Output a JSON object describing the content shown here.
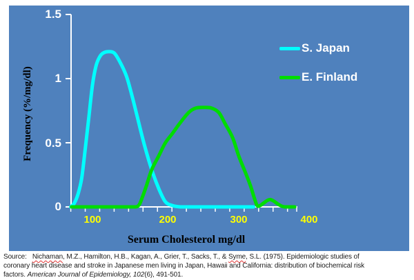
{
  "chart": {
    "background_color": "#4f81bd",
    "axis_color": "#ffffff",
    "y_axis": {
      "title": "Frequency  (%/mg/dl)",
      "tick_labels": [
        "1.5",
        "1",
        "0.5",
        "0"
      ],
      "label_color": "#ffffff"
    },
    "x_axis": {
      "title": "Serum Cholesterol mg/dl",
      "tick_labels": [
        "100",
        "200",
        "300",
        "400"
      ],
      "label_color": "#ffff00"
    },
    "legend": {
      "items": [
        {
          "label": "S. Japan",
          "color": "#00ffff"
        },
        {
          "label": "E. Finland",
          "color": "#00dd00"
        }
      ]
    }
  },
  "chart_data": {
    "type": "line",
    "title": "",
    "xlabel": "Serum Cholesterol mg/dl",
    "ylabel": "Frequency (%/mg/dl)",
    "xlim": [
      70,
      400
    ],
    "ylim": [
      0,
      1.5
    ],
    "x_ticks": [
      100,
      200,
      300,
      400
    ],
    "y_ticks": [
      0,
      0.5,
      1,
      1.5
    ],
    "x_minor_tick_step": 20,
    "grid": false,
    "legend_position": "upper-right",
    "series": [
      {
        "name": "S. Japan",
        "color": "#00ffff",
        "points": [
          [
            70,
            0
          ],
          [
            75,
            0.03
          ],
          [
            80,
            0.1
          ],
          [
            85,
            0.22
          ],
          [
            90,
            0.45
          ],
          [
            95,
            0.7
          ],
          [
            100,
            0.95
          ],
          [
            105,
            1.1
          ],
          [
            110,
            1.17
          ],
          [
            115,
            1.2
          ],
          [
            122,
            1.21
          ],
          [
            130,
            1.2
          ],
          [
            138,
            1.13
          ],
          [
            147,
            1.02
          ],
          [
            155,
            0.86
          ],
          [
            163,
            0.68
          ],
          [
            172,
            0.48
          ],
          [
            182,
            0.29
          ],
          [
            192,
            0.14
          ],
          [
            201,
            0.04
          ],
          [
            211,
            0.01
          ],
          [
            222,
            0
          ],
          [
            245,
            0
          ],
          [
            270,
            0
          ],
          [
            295,
            0
          ],
          [
            310,
            0
          ],
          [
            323,
            0
          ]
        ]
      },
      {
        "name": "E. Finland",
        "color": "#00dd00",
        "points": [
          [
            71,
            0
          ],
          [
            90,
            0
          ],
          [
            110,
            0
          ],
          [
            130,
            0
          ],
          [
            150,
            0
          ],
          [
            160,
            0
          ],
          [
            165,
            0.02
          ],
          [
            170,
            0.09
          ],
          [
            175,
            0.17
          ],
          [
            182,
            0.29
          ],
          [
            192,
            0.4
          ],
          [
            201,
            0.5
          ],
          [
            211,
            0.575
          ],
          [
            220,
            0.645
          ],
          [
            233,
            0.735
          ],
          [
            243,
            0.77
          ],
          [
            255,
            0.775
          ],
          [
            265,
            0.77
          ],
          [
            275,
            0.735
          ],
          [
            284,
            0.645
          ],
          [
            294,
            0.54
          ],
          [
            303,
            0.39
          ],
          [
            313,
            0.25
          ],
          [
            319,
            0.16
          ],
          [
            324,
            0.07
          ],
          [
            328,
            0.01
          ],
          [
            332,
            0.01
          ],
          [
            337,
            0.03
          ],
          [
            342,
            0.05
          ],
          [
            346,
            0.057
          ],
          [
            351,
            0.045
          ],
          [
            356,
            0.025
          ],
          [
            361,
            0.008
          ],
          [
            366,
            0
          ],
          [
            373,
            0
          ],
          [
            380,
            0
          ]
        ]
      }
    ]
  },
  "source": {
    "line1": {
      "prefix": "Source:   ",
      "name1": "Nichaman",
      "middle": ", M.Z., Hamilton, H.B., Kagan, A., Grier, T., Sacks, T., & ",
      "name2": "Syme",
      "suffix": ", S.L. (1975). Epidemiologic studies of"
    },
    "line2": "coronary heart disease and stroke in Japanese men living in Japan, Hawaii and California: distribution of biochemical risk",
    "line3": {
      "prefix": "factors. ",
      "italic": "American Journal of Epidemiology, 102",
      "suffix": "(6), 491-501."
    }
  }
}
